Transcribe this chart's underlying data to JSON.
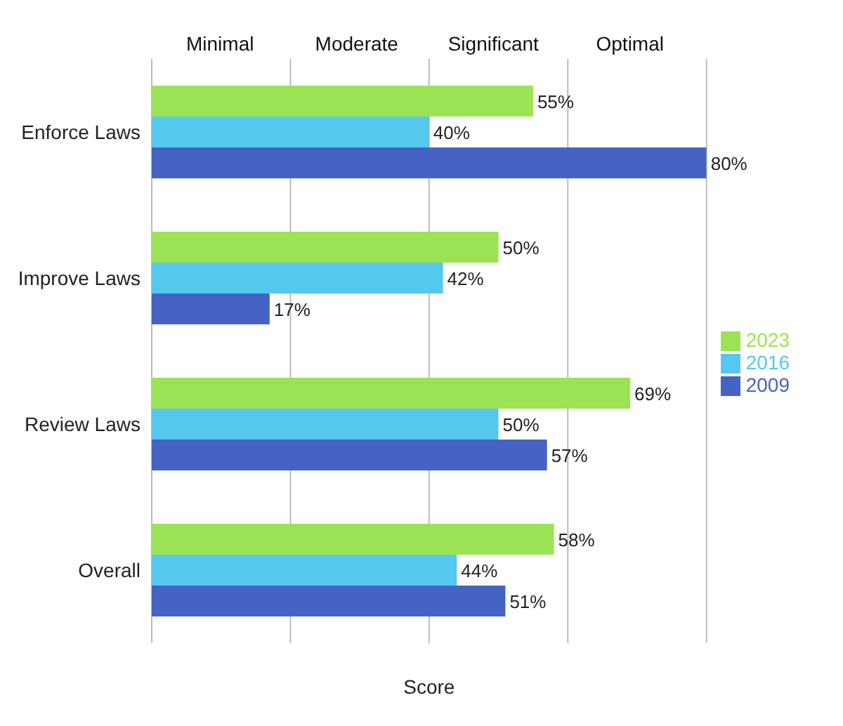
{
  "chart_data": {
    "type": "bar",
    "orientation": "horizontal",
    "xlabel": "Score",
    "categories": [
      "Enforce Laws",
      "Improve Laws",
      "Review Laws",
      "Overall"
    ],
    "series": [
      {
        "name": "2023",
        "color": "#9be354",
        "values": [
          55,
          50,
          69,
          58
        ],
        "value_labels": [
          "55%",
          "50%",
          "69%",
          "58%"
        ]
      },
      {
        "name": "2016",
        "color": "#55c8ef",
        "values": [
          40,
          42,
          50,
          44
        ],
        "value_labels": [
          "40%",
          "42%",
          "50%",
          "44%"
        ]
      },
      {
        "name": "2009",
        "color": "#4463c4",
        "values": [
          80,
          17,
          57,
          51
        ],
        "value_labels": [
          "80%",
          "17%",
          "57%",
          "51%"
        ]
      }
    ],
    "xlim": [
      0,
      80
    ],
    "xticks": [
      {
        "value": 0,
        "label": null
      },
      {
        "value": 20,
        "label": null
      },
      {
        "value": 40,
        "label": null
      },
      {
        "value": 60,
        "label": null
      },
      {
        "value": 80,
        "label": null
      }
    ],
    "annotations": [
      "Minimal",
      "Moderate",
      "Significant",
      "Optimal"
    ],
    "grid": "x",
    "legend": "right"
  }
}
